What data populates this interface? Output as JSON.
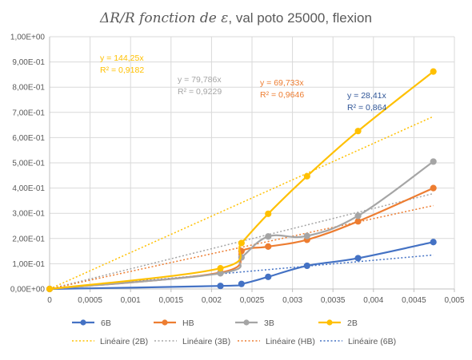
{
  "chart_data": {
    "type": "line",
    "title": {
      "math": "ΔR/R  fonction de ε",
      "rest": ", val poto 25000, flexion"
    },
    "xlabel": "",
    "ylabel": "",
    "xlim": [
      0,
      0.005
    ],
    "ylim": [
      0,
      1.0
    ],
    "x_tick_labels": [
      "0",
      "0,0005",
      "0,001",
      "0,0015",
      "0,002",
      "0,0025",
      "0,003",
      "0,0035",
      "0,004",
      "0,0045",
      "0,005"
    ],
    "y_tick_labels": [
      "0,00E+00",
      "1,00E-01",
      "2,00E-01",
      "3,00E-01",
      "4,00E-01",
      "5,00E-01",
      "6,00E-01",
      "7,00E-01",
      "8,00E-01",
      "9,00E-01",
      "1,00E+00"
    ],
    "grid": true,
    "legend_position": "bottom",
    "series": [
      {
        "name": "6B",
        "color": "#4472C4",
        "x": [
          0,
          0.00211,
          0.00237,
          0.0027,
          0.00318,
          0.00381,
          0.00474
        ],
        "y": [
          0,
          0.012,
          0.02,
          0.048,
          0.092,
          0.122,
          0.186
        ]
      },
      {
        "name": "HB",
        "color": "#ED7D31",
        "x": [
          0,
          0.00211,
          0.00237,
          0.0027,
          0.00318,
          0.00381,
          0.00474
        ],
        "y": [
          0,
          0.065,
          0.15,
          0.168,
          0.195,
          0.268,
          0.4
        ]
      },
      {
        "name": "3B",
        "color": "#A5A5A5",
        "x": [
          0,
          0.00211,
          0.00237,
          0.0027,
          0.00318,
          0.00381,
          0.00474
        ],
        "y": [
          0,
          0.062,
          0.125,
          0.208,
          0.21,
          0.29,
          0.505
        ]
      },
      {
        "name": "2B",
        "color": "#FFC000",
        "x": [
          0,
          0.00211,
          0.00237,
          0.0027,
          0.00318,
          0.00381,
          0.00474
        ],
        "y": [
          0,
          0.082,
          0.182,
          0.298,
          0.447,
          0.626,
          0.862
        ]
      }
    ],
    "trendlines": [
      {
        "name": "Linéaire (2B)",
        "color": "#FFC000",
        "slope": 144.25,
        "x_end": 0.00474
      },
      {
        "name": "Linéaire (3B)",
        "color": "#A5A5A5",
        "slope": 79.786,
        "x_end": 0.00474
      },
      {
        "name": "Linéaire (HB)",
        "color": "#ED7D31",
        "slope": 69.733,
        "x_end": 0.00474
      },
      {
        "name": "Linéaire (6B)",
        "color": "#4472C4",
        "slope": 28.41,
        "x_end": 0.00474
      }
    ],
    "annotations": [
      {
        "series": "2B",
        "color": "#FFC000",
        "equation": "y = 144,25x",
        "r2": "R² = 0,9182"
      },
      {
        "series": "3B",
        "color": "#A5A5A5",
        "equation": "y = 79,786x",
        "r2": "R² = 0,9229"
      },
      {
        "series": "HB",
        "color": "#ED7D31",
        "equation": "y = 69,733x",
        "r2": "R² = 0,9646"
      },
      {
        "series": "6B",
        "color": "#2F5597",
        "equation": "y = 28,41x",
        "r2": "R² = 0,864"
      }
    ],
    "legend": {
      "markers": [
        "6B",
        "HB",
        "3B",
        "2B"
      ],
      "trendlines": [
        "Linéaire (2B)",
        "Linéaire (3B)",
        "Linéaire (HB)",
        "Linéaire (6B)"
      ]
    }
  }
}
